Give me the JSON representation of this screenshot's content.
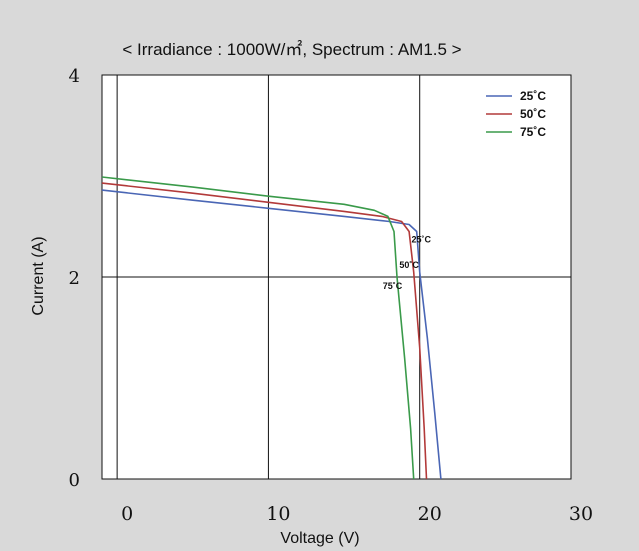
{
  "chart_data": {
    "type": "line",
    "title": "< Irradiance : 1000W/㎡, Spectrum : AM1.5 >",
    "xlabel": "Voltage (V)",
    "ylabel": "Current  (A)",
    "xlim": [
      -1,
      30
    ],
    "ylim": [
      0,
      4
    ],
    "x_ticks": [
      "0",
      "10",
      "20",
      "30"
    ],
    "y_ticks": [
      "0",
      "2",
      "4"
    ],
    "grid": true,
    "legend_position": "top-right",
    "series": [
      {
        "name": "25˚C",
        "color": "#4a66b5",
        "points": [
          [
            -1,
            2.86
          ],
          [
            5,
            2.76
          ],
          [
            10,
            2.68
          ],
          [
            15,
            2.6
          ],
          [
            18,
            2.55
          ],
          [
            19.3,
            2.52
          ],
          [
            19.8,
            2.45
          ],
          [
            20,
            2.05
          ],
          [
            20.5,
            1.4
          ],
          [
            21,
            0.65
          ],
          [
            21.4,
            0.0
          ]
        ]
      },
      {
        "name": "50˚C",
        "color": "#b23a3a",
        "points": [
          [
            -1,
            2.93
          ],
          [
            5,
            2.83
          ],
          [
            10,
            2.74
          ],
          [
            15,
            2.65
          ],
          [
            17.5,
            2.6
          ],
          [
            18.8,
            2.55
          ],
          [
            19.3,
            2.45
          ],
          [
            19.6,
            2.05
          ],
          [
            20,
            1.3
          ],
          [
            20.3,
            0.5
          ],
          [
            20.45,
            0.0
          ]
        ]
      },
      {
        "name": "75˚C",
        "color": "#3a9a4a",
        "points": [
          [
            -1,
            2.99
          ],
          [
            5,
            2.89
          ],
          [
            10,
            2.8
          ],
          [
            15,
            2.72
          ],
          [
            17,
            2.66
          ],
          [
            17.9,
            2.6
          ],
          [
            18.3,
            2.45
          ],
          [
            18.5,
            2.0
          ],
          [
            19,
            1.2
          ],
          [
            19.4,
            0.5
          ],
          [
            19.6,
            0.0
          ]
        ]
      }
    ],
    "annotations": [
      {
        "text": "25˚C",
        "x": 20.1,
        "y": 2.34
      },
      {
        "text": "50˚C",
        "x": 19.3,
        "y": 2.09
      },
      {
        "text": "75˚C",
        "x": 18.2,
        "y": 1.88
      }
    ]
  }
}
